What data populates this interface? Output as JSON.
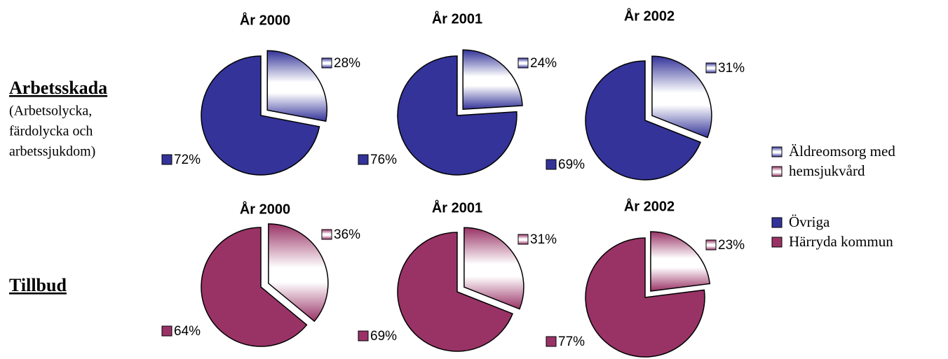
{
  "chart_data": [
    {
      "type": "pie",
      "title": "År 2000",
      "values": [
        28,
        72
      ],
      "value_labels": [
        "28%",
        "72%"
      ],
      "colors": [
        "#333399",
        "#333399"
      ],
      "fill_styles": [
        "gradient",
        "solid"
      ],
      "explode": [
        true,
        false
      ]
    },
    {
      "type": "pie",
      "title": "År 2001",
      "values": [
        24,
        76
      ],
      "value_labels": [
        "24%",
        "76%"
      ],
      "colors": [
        "#333399",
        "#333399"
      ],
      "fill_styles": [
        "gradient",
        "solid"
      ],
      "explode": [
        true,
        false
      ]
    },
    {
      "type": "pie",
      "title": "År 2002",
      "values": [
        31,
        69
      ],
      "value_labels": [
        "31%",
        "69%"
      ],
      "colors": [
        "#333399",
        "#333399"
      ],
      "fill_styles": [
        "gradient",
        "solid"
      ],
      "explode": [
        true,
        false
      ]
    },
    {
      "type": "pie",
      "title": "År 2000",
      "values": [
        36,
        64
      ],
      "value_labels": [
        "36%",
        "64%"
      ],
      "colors": [
        "#993366",
        "#993366"
      ],
      "fill_styles": [
        "gradient",
        "solid"
      ],
      "explode": [
        true,
        false
      ]
    },
    {
      "type": "pie",
      "title": "År 2001",
      "values": [
        31,
        69
      ],
      "value_labels": [
        "31%",
        "69%"
      ],
      "colors": [
        "#993366",
        "#993366"
      ],
      "fill_styles": [
        "gradient",
        "solid"
      ],
      "explode": [
        true,
        false
      ]
    },
    {
      "type": "pie",
      "title": "År 2002",
      "values": [
        23,
        77
      ],
      "value_labels": [
        "23%",
        "77%"
      ],
      "colors": [
        "#993366",
        "#993366"
      ],
      "fill_styles": [
        "gradient",
        "solid"
      ],
      "explode": [
        true,
        false
      ]
    }
  ],
  "rows": [
    {
      "title": "Arbetsskada",
      "subtitle": [
        "(Arbetsolycka,",
        "färdolycka och",
        "arbetssjukdom)"
      ]
    },
    {
      "title": "Tillbud"
    }
  ],
  "legend": [
    {
      "lines": [
        "Äldreomsorg med",
        "hemsjukvård"
      ],
      "colors": [
        "#333399",
        "#993366"
      ],
      "fill_style": "gradient"
    },
    {
      "lines": [
        "Övriga"
      ],
      "colors": [
        "#333399"
      ],
      "fill_style": "solid"
    },
    {
      "lines": [
        "Härryda kommun"
      ],
      "colors": [
        "#993366"
      ],
      "fill_style": "solid"
    }
  ]
}
